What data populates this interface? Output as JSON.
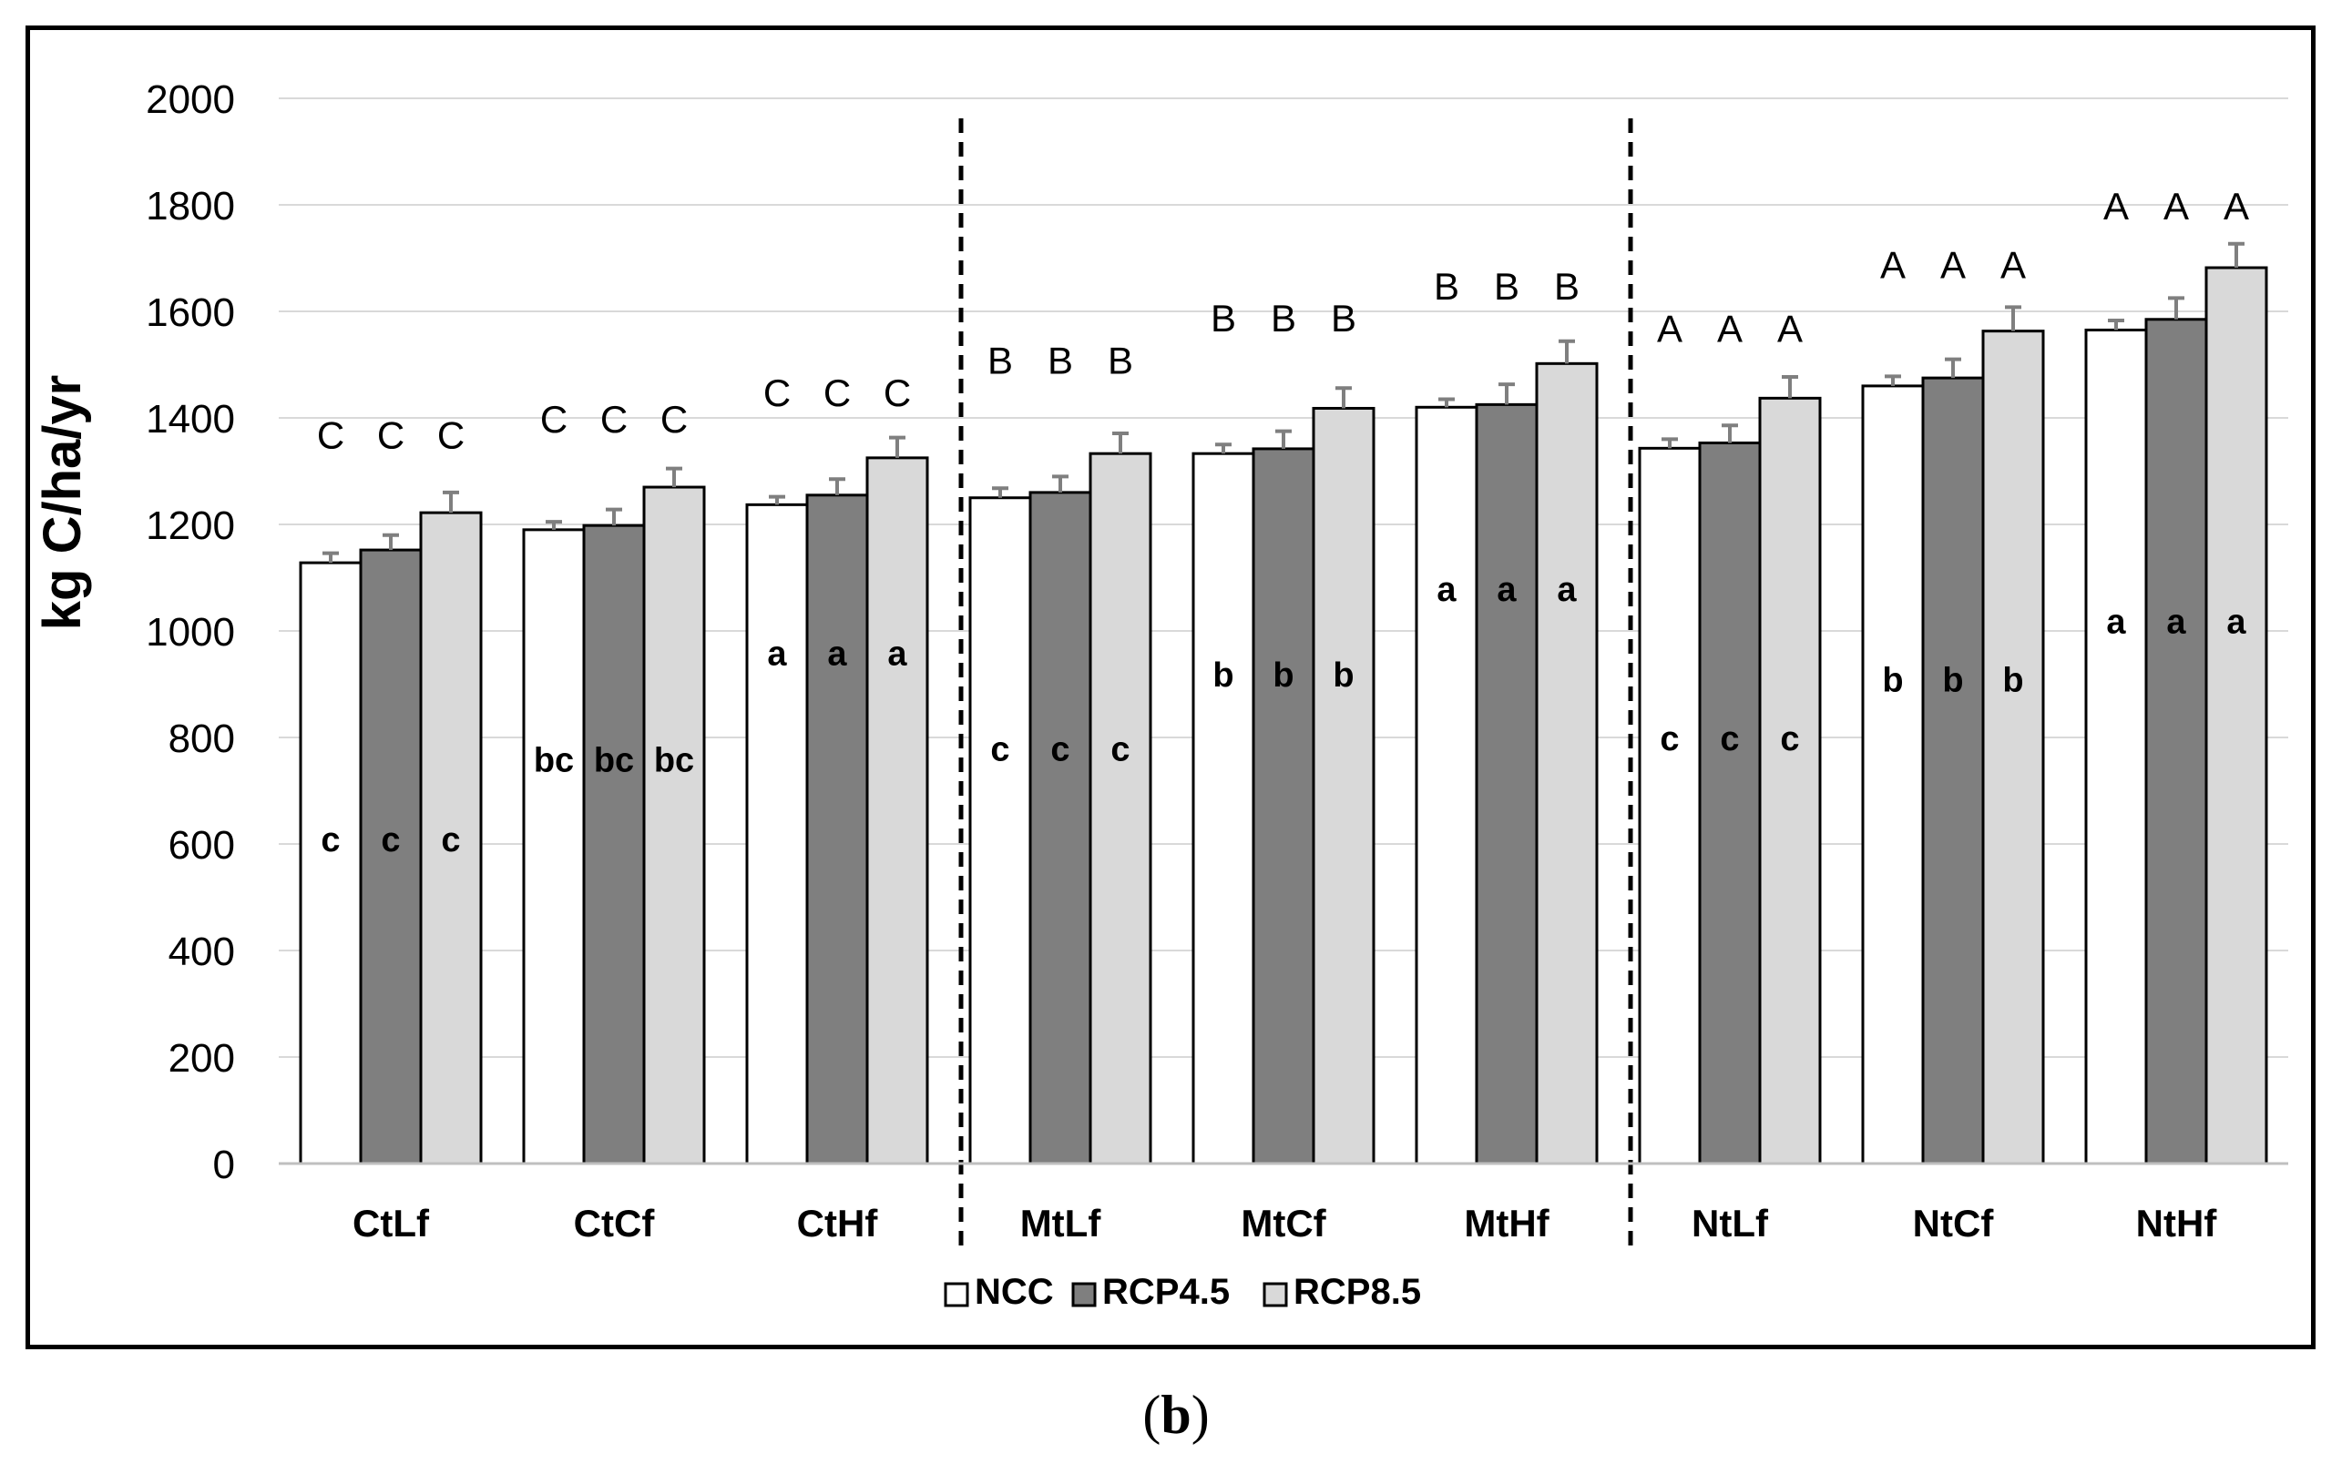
{
  "panel_label": "b",
  "chart_data": {
    "type": "bar",
    "title": "",
    "xlabel": "",
    "ylabel": "kg C/ha/yr",
    "ylim": [
      0,
      2000
    ],
    "yticks": [
      0,
      200,
      400,
      600,
      800,
      1000,
      1200,
      1400,
      1600,
      1800,
      2000
    ],
    "grid": true,
    "legend_position": "bottom",
    "categories": [
      "CtLf",
      "CtCf",
      "CtHf",
      "MtLf",
      "MtCf",
      "MtHf",
      "NtLf",
      "NtCf",
      "NtHf"
    ],
    "series": [
      {
        "name": "NCC",
        "color": "#ffffff",
        "values": [
          1128,
          1190,
          1237,
          1250,
          1333,
          1420,
          1343,
          1460,
          1565
        ],
        "errors": [
          18,
          15,
          15,
          18,
          17,
          15,
          17,
          18,
          18
        ],
        "lower_letters": [
          "c",
          "bc",
          "a",
          "c",
          "b",
          "a",
          "c",
          "b",
          "a"
        ],
        "upper_letters": [
          "C",
          "C",
          "C",
          "B",
          "B",
          "B",
          "A",
          "A",
          "A"
        ]
      },
      {
        "name": "RCP4.5",
        "color": "#7f7f7f",
        "values": [
          1152,
          1198,
          1255,
          1260,
          1342,
          1425,
          1353,
          1475,
          1585
        ],
        "errors": [
          28,
          30,
          30,
          30,
          33,
          38,
          33,
          35,
          40
        ],
        "lower_letters": [
          "c",
          "bc",
          "a",
          "c",
          "b",
          "a",
          "c",
          "b",
          "a"
        ],
        "upper_letters": [
          "C",
          "C",
          "C",
          "B",
          "B",
          "B",
          "A",
          "A",
          "A"
        ]
      },
      {
        "name": "RCP8.5",
        "color": "#d9d9d9",
        "values": [
          1222,
          1270,
          1325,
          1333,
          1418,
          1502,
          1437,
          1563,
          1682
        ],
        "errors": [
          38,
          35,
          38,
          38,
          38,
          42,
          40,
          45,
          45
        ],
        "lower_letters": [
          "c",
          "bc",
          "a",
          "c",
          "b",
          "a",
          "c",
          "b",
          "a"
        ],
        "upper_letters": [
          "C",
          "C",
          "C",
          "B",
          "B",
          "B",
          "A",
          "A",
          "A"
        ]
      }
    ],
    "lower_letter_levels": [
      610,
      760,
      960,
      780,
      920,
      1080,
      800,
      910,
      1020
    ],
    "upper_letter_levels": [
      1370,
      1400,
      1450,
      1510,
      1590,
      1650,
      1570,
      1690,
      1800
    ],
    "group_separators_after": [
      2,
      5
    ]
  }
}
